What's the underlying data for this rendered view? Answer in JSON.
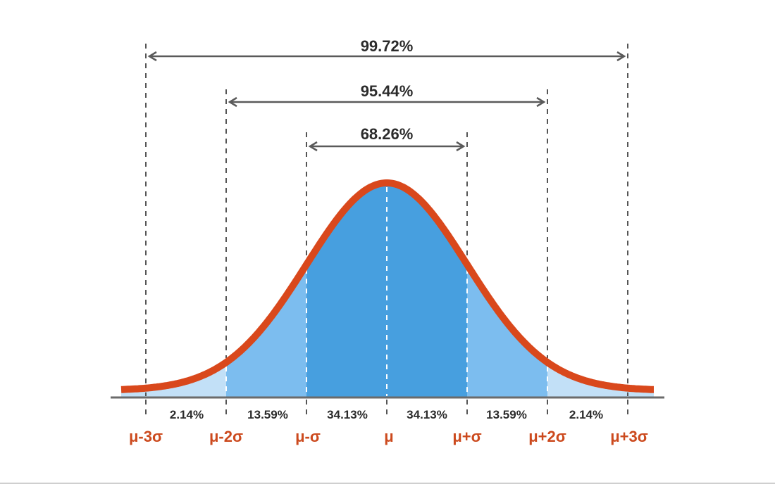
{
  "chart_data": {
    "type": "area",
    "title": "",
    "description": "Normal distribution bell curve with standard deviation bands",
    "xlabel": "",
    "ylabel": "",
    "categories": [
      "μ-3σ",
      "μ-2σ",
      "μ-σ",
      "μ",
      "μ+σ",
      "μ+2σ",
      "μ+3σ"
    ],
    "band_labels": [
      "2.14%",
      "13.59%",
      "34.13%",
      "34.13%",
      "13.59%",
      "2.14%"
    ],
    "band_values": [
      2.14,
      13.59,
      34.13,
      34.13,
      13.59,
      2.14
    ],
    "ranges": [
      {
        "label": "68.26%",
        "value": 68.26,
        "from": "μ-σ",
        "to": "μ+σ"
      },
      {
        "label": "95.44%",
        "value": 95.44,
        "from": "μ-2σ",
        "to": "μ+2σ"
      },
      {
        "label": "99.72%",
        "value": 99.72,
        "from": "μ-3σ",
        "to": "μ+3σ"
      }
    ],
    "grid": false,
    "legend": null
  },
  "colors": {
    "curve": "#d9481c",
    "band_inner": "#479fdf",
    "band_middle": "#7cbdef",
    "band_outer": "#c2e0f7",
    "axis": "#6b6b6b",
    "dash": "#555555",
    "label_dark": "#2b2b2b",
    "label_sigma": "#cc4a1e",
    "arrow": "#5a5a5a"
  }
}
